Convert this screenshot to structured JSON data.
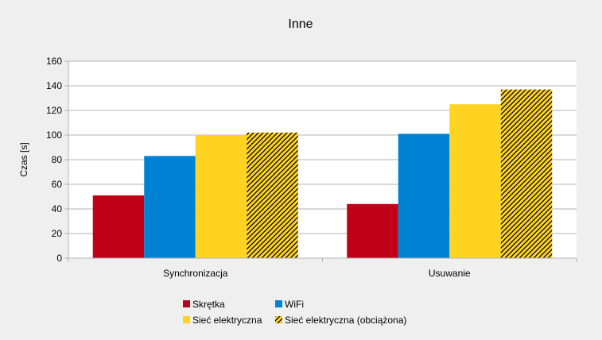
{
  "chart_data": {
    "type": "bar",
    "title": "Inne",
    "xlabel": "",
    "ylabel": "Czas [s]",
    "ylim": [
      0,
      160
    ],
    "yticks": [
      0,
      20,
      40,
      60,
      80,
      100,
      120,
      140,
      160
    ],
    "grid": true,
    "legend_position": "bottom",
    "categories": [
      "Synchronizacja",
      "Usuwanie"
    ],
    "series": [
      {
        "name": "Skrętka",
        "values": [
          51,
          44
        ],
        "color": "#c00016",
        "pattern": "solid"
      },
      {
        "name": "WiFi",
        "values": [
          83,
          101
        ],
        "color": "#0082d4",
        "pattern": "solid"
      },
      {
        "name": "Sieć elektryczna",
        "values": [
          100,
          125
        ],
        "color": "#ffd320",
        "pattern": "solid"
      },
      {
        "name": "Sieć elektryczna (obciążona)",
        "values": [
          102,
          137
        ],
        "color": "#ffd320",
        "pattern": "hatched"
      }
    ]
  }
}
